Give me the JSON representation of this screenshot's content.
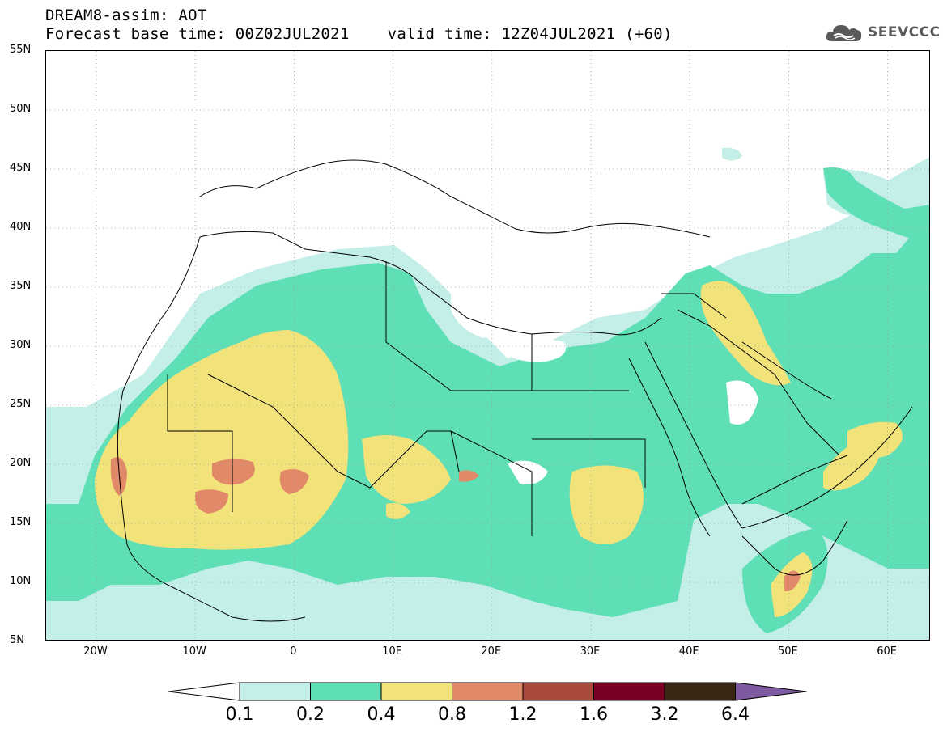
{
  "header": {
    "line1": "DREAM8-assim: AOT",
    "line2": "Forecast base time: 00Z02JUL2021    valid time: 12Z04JUL2021 (+60)"
  },
  "logo": {
    "text": "SEEVCCC",
    "icon": "cloud-icon"
  },
  "map": {
    "lat_labels": [
      "55N",
      "50N",
      "45N",
      "40N",
      "35N",
      "30N",
      "25N",
      "20N",
      "15N",
      "10N",
      "5N"
    ],
    "lon_labels": [
      "20W",
      "10W",
      "0",
      "10E",
      "20E",
      "30E",
      "40E",
      "50E",
      "60E"
    ],
    "colors": {
      "l01": "#c4efe9",
      "l02": "#5fdfb5",
      "l04": "#f2e27a",
      "l08": "#e2896a",
      "l12": "#a84a3c",
      "border": "#000000"
    }
  },
  "legend": {
    "labels": [
      "0.1",
      "0.2",
      "0.4",
      "0.8",
      "1.2",
      "1.6",
      "3.2",
      "6.4"
    ],
    "colors": [
      "#ffffff",
      "#c4efe9",
      "#5fdfb5",
      "#f2e27a",
      "#e2896a",
      "#a84a3c",
      "#7a0023",
      "#3a2614",
      "#7e5aa0"
    ]
  }
}
